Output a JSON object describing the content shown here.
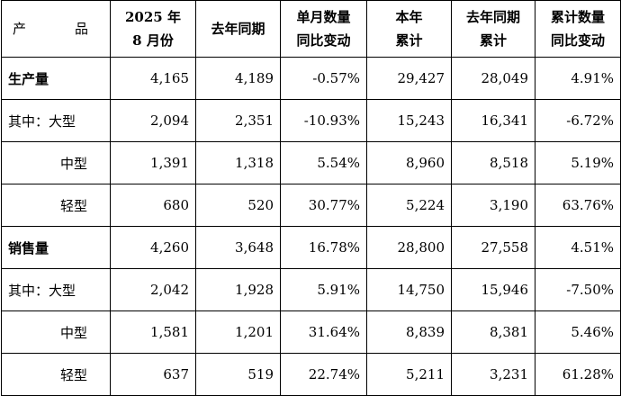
{
  "header": {
    "product": [
      "产",
      "品"
    ],
    "month_2025": [
      "2025 年",
      "8 月份"
    ],
    "last_year_same": "去年同期",
    "month_yoy": [
      "单月数量",
      "同比变动"
    ],
    "ytd": [
      "本年",
      "累计"
    ],
    "last_year_ytd": [
      "去年同期",
      "累计"
    ],
    "ytd_yoy": [
      "累计数量",
      "同比变动"
    ]
  },
  "rows": [
    {
      "label": "生产量",
      "values": [
        "4,165",
        "4,189",
        "-0.57%",
        "29,427",
        "28,049",
        "4.91%"
      ]
    },
    {
      "label": "其中：大型",
      "values": [
        "2,094",
        "2,351",
        "-10.93%",
        "15,243",
        "16,341",
        "-6.72%"
      ]
    },
    {
      "label": "中型",
      "values": [
        "1,391",
        "1,318",
        "5.54%",
        "8,960",
        "8,518",
        "5.19%"
      ]
    },
    {
      "label": "轻型",
      "values": [
        "680",
        "520",
        "30.77%",
        "5,224",
        "3,190",
        "63.76%"
      ]
    },
    {
      "label": "销售量",
      "values": [
        "4,260",
        "3,648",
        "16.78%",
        "28,800",
        "27,558",
        "4.51%"
      ]
    },
    {
      "label": "其中：大型",
      "values": [
        "2,042",
        "1,928",
        "5.91%",
        "14,750",
        "15,946",
        "-7.50%"
      ]
    },
    {
      "label": "中型",
      "values": [
        "1,581",
        "1,201",
        "31.64%",
        "8,839",
        "8,381",
        "5.46%"
      ]
    },
    {
      "label": "轻型",
      "values": [
        "637",
        "519",
        "22.74%",
        "5,211",
        "3,231",
        "61.28%"
      ]
    }
  ]
}
